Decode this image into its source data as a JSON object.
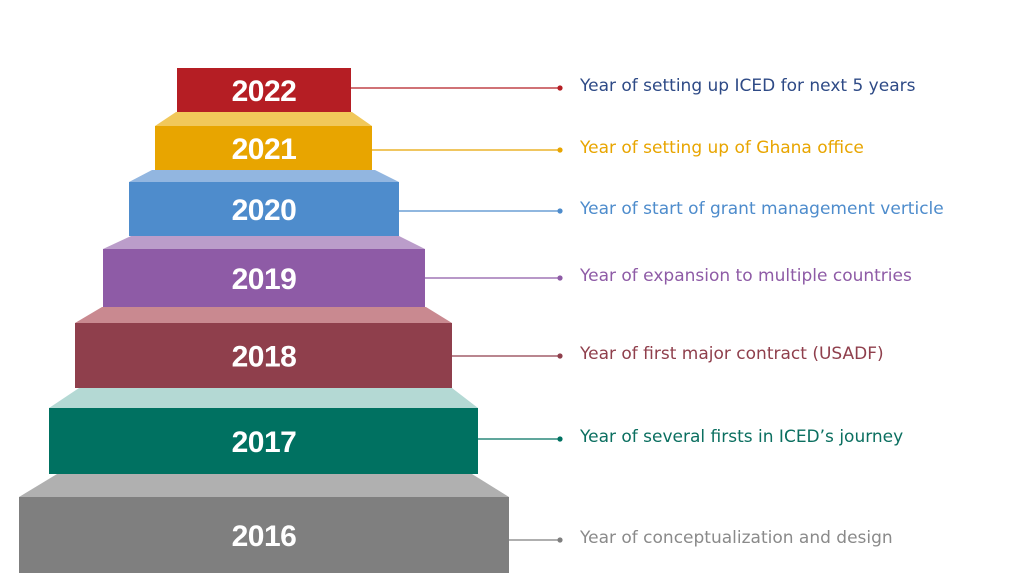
{
  "steps": [
    {
      "year": "2016",
      "description": "Year of conceptualization and design",
      "front": "#7f7f7f",
      "top": "#b0b0b0",
      "text": "#8a8a8a"
    },
    {
      "year": "2017",
      "description": "Year of several firsts in ICED’s journey",
      "front": "#007161",
      "top": "#b4d9d4",
      "text": "#0b6f60"
    },
    {
      "year": "2018",
      "description": "Year of first major contract (USADF)",
      "front": "#8f3f4c",
      "top": "#c98990",
      "text": "#8f3f4c"
    },
    {
      "year": "2019",
      "description": "Year of expansion to multiple countries",
      "front": "#8e5ba6",
      "top": "#bb9dca",
      "text": "#8e5ba6"
    },
    {
      "year": "2020",
      "description": "Year of start of grant management verticle",
      "front": "#4e8ccc",
      "top": "#92b6e0",
      "text": "#4e8ccc"
    },
    {
      "year": "2021",
      "description": "Year of setting up of Ghana office",
      "front": "#e8a500",
      "top": "#f1c85a",
      "text": "#e8a500"
    },
    {
      "year": "2022",
      "description": "Year of setting up ICED for next 5 years",
      "front": "#b51e24",
      "top": "#b51e24",
      "text": "#2e4a86"
    }
  ]
}
